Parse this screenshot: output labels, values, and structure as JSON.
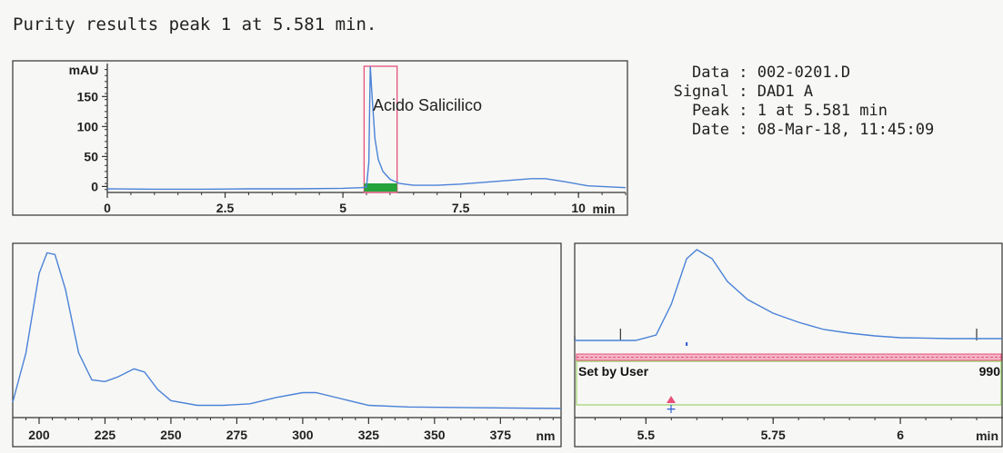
{
  "report": {
    "title": "Purity results peak 1 at 5.581 min."
  },
  "info": [
    {
      "label": "Data",
      "value": "002-0201.D"
    },
    {
      "label": "Signal",
      "value": "DAD1 A"
    },
    {
      "label": "Peak",
      "value": "1 at 5.581 min"
    },
    {
      "label": "Date",
      "value": "08-Mar-18, 11:45:09"
    }
  ],
  "chart_data": [
    {
      "type": "line",
      "ylabel": "mAU",
      "xlabel": "min",
      "xlim": [
        0,
        11
      ],
      "ylim": [
        -10,
        205
      ],
      "yticks": [
        0,
        50,
        100,
        150
      ],
      "xticks": [
        0,
        2.5,
        5,
        7.5,
        10
      ],
      "annotation": "Acido Salicilico",
      "peak_window": [
        5.45,
        6.15
      ],
      "series": [
        {
          "color": "#4a82d8",
          "points": [
            [
              0,
              -4
            ],
            [
              1,
              -4.5
            ],
            [
              2,
              -4.5
            ],
            [
              3,
              -4
            ],
            [
              4,
              -4
            ],
            [
              5,
              -3
            ],
            [
              5.4,
              -2
            ],
            [
              5.5,
              -1
            ],
            [
              5.55,
              40
            ],
            [
              5.581,
              200
            ],
            [
              5.62,
              150
            ],
            [
              5.68,
              80
            ],
            [
              5.75,
              45
            ],
            [
              5.85,
              25
            ],
            [
              6.0,
              12
            ],
            [
              6.2,
              5
            ],
            [
              6.5,
              2
            ],
            [
              7,
              2
            ],
            [
              7.5,
              4
            ],
            [
              8,
              7
            ],
            [
              8.5,
              10
            ],
            [
              9,
              13
            ],
            [
              9.3,
              13
            ],
            [
              9.7,
              8
            ],
            [
              10.2,
              1
            ],
            [
              11,
              -2
            ]
          ]
        }
      ]
    },
    {
      "type": "line",
      "xlabel": "nm",
      "xlim": [
        190,
        398
      ],
      "ylim": [
        0,
        1
      ],
      "xticks": [
        200,
        225,
        250,
        275,
        300,
        325,
        350,
        375
      ],
      "series": [
        {
          "color": "#4a82d8",
          "points": [
            [
              190,
              0.04
            ],
            [
              195,
              0.35
            ],
            [
              200,
              0.85
            ],
            [
              203,
              0.98
            ],
            [
              206,
              0.97
            ],
            [
              210,
              0.75
            ],
            [
              215,
              0.35
            ],
            [
              220,
              0.18
            ],
            [
              225,
              0.17
            ],
            [
              230,
              0.2
            ],
            [
              236,
              0.25
            ],
            [
              240,
              0.23
            ],
            [
              245,
              0.12
            ],
            [
              250,
              0.05
            ],
            [
              260,
              0.02
            ],
            [
              270,
              0.02
            ],
            [
              280,
              0.03
            ],
            [
              290,
              0.07
            ],
            [
              300,
              0.1
            ],
            [
              305,
              0.1
            ],
            [
              315,
              0.06
            ],
            [
              325,
              0.02
            ],
            [
              340,
              0.01
            ],
            [
              398,
              0.0
            ]
          ]
        }
      ]
    },
    {
      "type": "line",
      "xlabel": "min",
      "xlim": [
        5.36,
        6.2
      ],
      "ylim": [
        0,
        1
      ],
      "xticks": [
        5.5,
        5.75,
        6
      ],
      "threshold_label": "Set by User",
      "threshold_value": "990",
      "series": [
        {
          "color": "#4a82d8",
          "points": [
            [
              5.36,
              0
            ],
            [
              5.48,
              0
            ],
            [
              5.52,
              0.06
            ],
            [
              5.55,
              0.4
            ],
            [
              5.58,
              0.9
            ],
            [
              5.6,
              1.0
            ],
            [
              5.63,
              0.9
            ],
            [
              5.66,
              0.65
            ],
            [
              5.7,
              0.45
            ],
            [
              5.75,
              0.3
            ],
            [
              5.8,
              0.2
            ],
            [
              5.85,
              0.12
            ],
            [
              5.9,
              0.08
            ],
            [
              5.95,
              0.05
            ],
            [
              6.0,
              0.03
            ],
            [
              6.1,
              0.02
            ],
            [
              6.2,
              0.02
            ]
          ]
        }
      ]
    }
  ]
}
